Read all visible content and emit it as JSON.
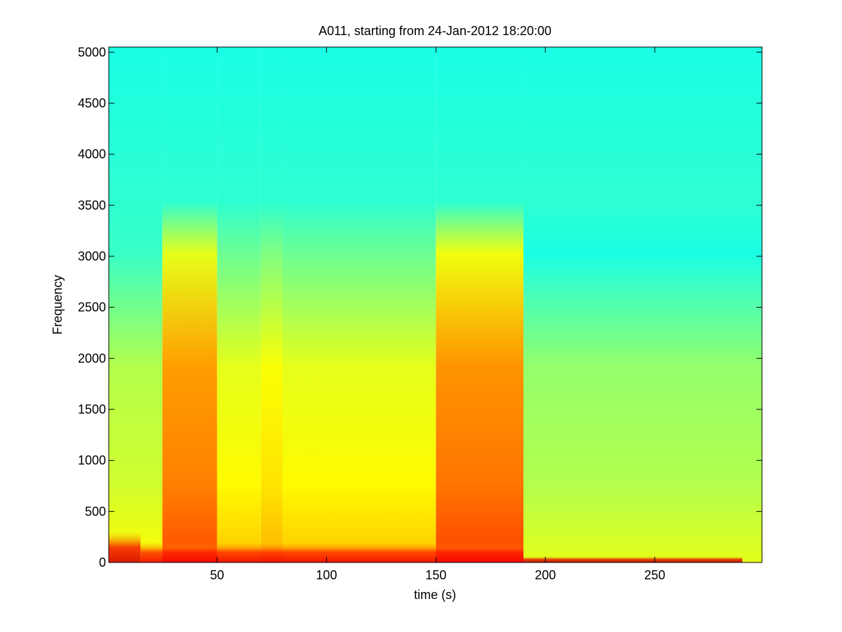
{
  "chart_data": {
    "type": "heatmap",
    "title": "A011, starting from 24-Jan-2012 18:20:00",
    "xlabel": "time (s)",
    "ylabel": "Frequency",
    "xlim": [
      0.5,
      299
    ],
    "ylim": [
      0,
      5050
    ],
    "xticks": [
      50,
      100,
      150,
      200,
      250
    ],
    "yticks": [
      0,
      500,
      1000,
      1500,
      2000,
      2500,
      3000,
      3500,
      4000,
      4500,
      5000
    ],
    "grid": false,
    "colormap": "jet",
    "bands": [
      {
        "x_start": 0.5,
        "x_end": 25,
        "level": 0.55
      },
      {
        "x_start": 25,
        "x_end": 50,
        "level": 0.72
      },
      {
        "x_start": 50,
        "x_end": 70,
        "level": 0.6
      },
      {
        "x_start": 70,
        "x_end": 80,
        "level": 0.62
      },
      {
        "x_start": 80,
        "x_end": 150,
        "level": 0.6
      },
      {
        "x_start": 150,
        "x_end": 190,
        "level": 0.73
      },
      {
        "x_start": 190,
        "x_end": 299,
        "level": 0.52
      }
    ],
    "low_frequency_energy": [
      {
        "x_start": 0.5,
        "x_end": 15,
        "f_max": 300,
        "level": 0.88
      },
      {
        "x_start": 15,
        "x_end": 190,
        "f_max": 200,
        "level": 0.85
      },
      {
        "x_start": 190,
        "x_end": 290,
        "f_max": 60,
        "level": 0.9
      }
    ]
  }
}
